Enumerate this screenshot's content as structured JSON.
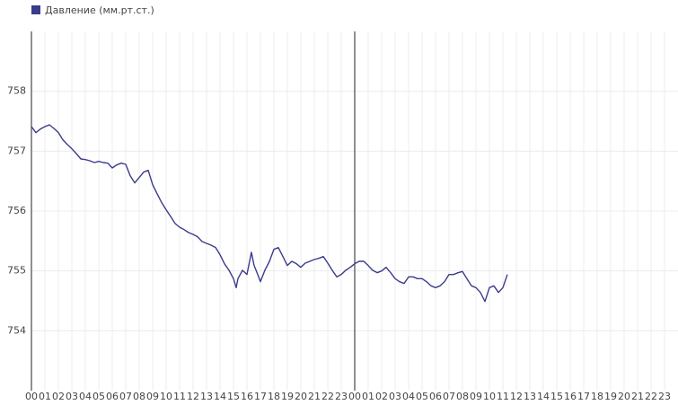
{
  "chart_data": {
    "type": "line",
    "x": [
      0,
      0.33,
      0.67,
      1,
      1.33,
      1.67,
      2,
      2.33,
      2.67,
      3,
      3.33,
      3.67,
      4,
      4.33,
      4.67,
      5,
      5.33,
      5.67,
      6,
      6.33,
      6.67,
      7,
      7.33,
      7.67,
      8,
      8.33,
      8.67,
      9,
      9.33,
      9.67,
      10,
      10.33,
      10.67,
      11,
      11.33,
      11.67,
      12,
      12.33,
      12.67,
      13,
      13.33,
      13.67,
      14,
      14.33,
      14.67,
      15,
      15.2,
      15.33,
      15.67,
      16,
      16.33,
      16.53,
      16.8,
      17,
      17.33,
      17.67,
      18,
      18.33,
      18.67,
      19,
      19.33,
      19.67,
      20,
      20.33,
      20.67,
      21,
      21.33,
      21.67,
      22,
      22.33,
      22.67,
      23,
      23.33,
      23.67,
      24,
      24.33,
      24.67,
      25,
      25.33,
      25.67,
      26,
      26.33,
      26.67,
      27,
      27.33,
      27.67,
      28,
      28.33,
      28.67,
      29,
      29.33,
      29.67,
      30,
      30.33,
      30.67,
      31,
      31.33,
      31.67,
      32,
      32.33,
      32.67,
      33,
      33.33,
      33.67,
      34,
      34.33,
      34.67,
      35,
      35.33
    ],
    "series": [
      {
        "name": "Давление (мм.рт.ст.)",
        "color": "#3b3b8c",
        "values": [
          757.41,
          757.31,
          757.37,
          757.41,
          757.44,
          757.38,
          757.31,
          757.19,
          757.11,
          757.04,
          756.96,
          756.87,
          756.86,
          756.84,
          756.81,
          756.83,
          756.81,
          756.8,
          756.72,
          756.77,
          756.8,
          756.78,
          756.59,
          756.47,
          756.56,
          756.65,
          756.68,
          756.44,
          756.29,
          756.14,
          756.02,
          755.91,
          755.79,
          755.73,
          755.69,
          755.64,
          755.61,
          755.57,
          755.49,
          755.46,
          755.43,
          755.39,
          755.27,
          755.12,
          755.01,
          754.87,
          754.72,
          754.87,
          755.01,
          754.94,
          755.31,
          755.09,
          754.94,
          754.82,
          755.01,
          755.16,
          755.36,
          755.39,
          755.24,
          755.09,
          755.16,
          755.12,
          755.06,
          755.13,
          755.16,
          755.19,
          755.21,
          755.24,
          755.13,
          755.01,
          754.9,
          754.94,
          755.01,
          755.06,
          755.12,
          755.16,
          755.16,
          755.09,
          755.01,
          754.97,
          755.0,
          755.06,
          754.97,
          754.87,
          754.82,
          754.79,
          754.9,
          754.9,
          754.87,
          754.87,
          754.82,
          754.75,
          754.72,
          754.75,
          754.82,
          754.94,
          754.94,
          754.97,
          754.99,
          754.87,
          754.75,
          754.72,
          754.64,
          754.49,
          754.72,
          754.75,
          754.64,
          754.72,
          754.94
        ]
      }
    ],
    "xlim": [
      0,
      48
    ],
    "xticks": [
      {
        "value": 0,
        "label": "00"
      },
      {
        "value": 1,
        "label": "01"
      },
      {
        "value": 2,
        "label": "02"
      },
      {
        "value": 3,
        "label": "03"
      },
      {
        "value": 4,
        "label": "04"
      },
      {
        "value": 5,
        "label": "05"
      },
      {
        "value": 6,
        "label": "06"
      },
      {
        "value": 7,
        "label": "07"
      },
      {
        "value": 8,
        "label": "08"
      },
      {
        "value": 9,
        "label": "09"
      },
      {
        "value": 10,
        "label": "10"
      },
      {
        "value": 11,
        "label": "11"
      },
      {
        "value": 12,
        "label": "12"
      },
      {
        "value": 13,
        "label": "13"
      },
      {
        "value": 14,
        "label": "14"
      },
      {
        "value": 15,
        "label": "15"
      },
      {
        "value": 16,
        "label": "16"
      },
      {
        "value": 17,
        "label": "17"
      },
      {
        "value": 18,
        "label": "18"
      },
      {
        "value": 19,
        "label": "19"
      },
      {
        "value": 20,
        "label": "20"
      },
      {
        "value": 21,
        "label": "21"
      },
      {
        "value": 22,
        "label": "22"
      },
      {
        "value": 23,
        "label": "23"
      },
      {
        "value": 24,
        "label": "00"
      },
      {
        "value": 25,
        "label": "01"
      },
      {
        "value": 26,
        "label": "02"
      },
      {
        "value": 27,
        "label": "03"
      },
      {
        "value": 28,
        "label": "04"
      },
      {
        "value": 29,
        "label": "05"
      },
      {
        "value": 30,
        "label": "06"
      },
      {
        "value": 31,
        "label": "07"
      },
      {
        "value": 32,
        "label": "08"
      },
      {
        "value": 33,
        "label": "09"
      },
      {
        "value": 34,
        "label": "10"
      },
      {
        "value": 35,
        "label": "11"
      },
      {
        "value": 36,
        "label": "12"
      },
      {
        "value": 37,
        "label": "13"
      },
      {
        "value": 38,
        "label": "14"
      },
      {
        "value": 39,
        "label": "15"
      },
      {
        "value": 40,
        "label": "16"
      },
      {
        "value": 41,
        "label": "17"
      },
      {
        "value": 42,
        "label": "18"
      },
      {
        "value": 43,
        "label": "19"
      },
      {
        "value": 44,
        "label": "20"
      },
      {
        "value": 45,
        "label": "21"
      },
      {
        "value": 46,
        "label": "22"
      },
      {
        "value": 47,
        "label": "23"
      }
    ],
    "ylim": [
      753,
      759
    ],
    "yticks": [
      754,
      755,
      756,
      757,
      758
    ],
    "grid": true,
    "legend": "top-left"
  }
}
